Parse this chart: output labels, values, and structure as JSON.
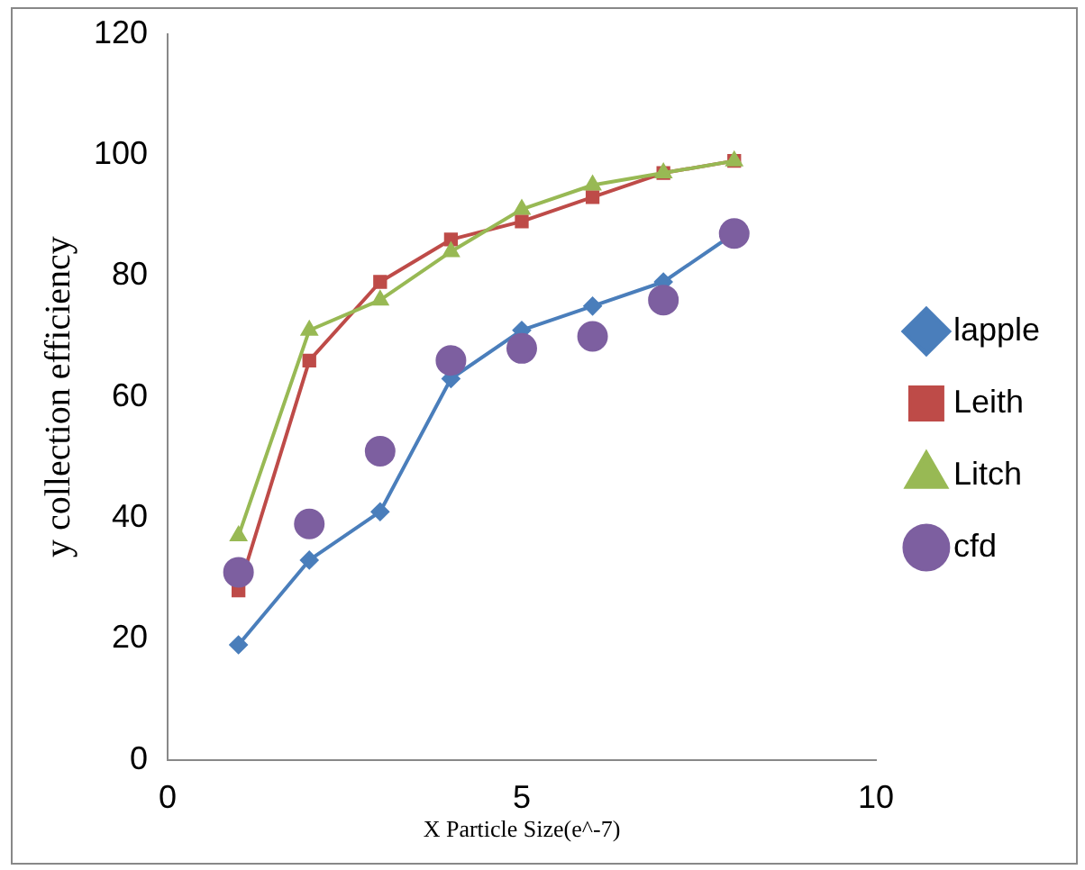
{
  "chart_data": {
    "type": "line",
    "xlabel": "X Particle Size(e^-7)",
    "ylabel": "y collection efficiency",
    "x": [
      1,
      2,
      3,
      4,
      5,
      6,
      7,
      8
    ],
    "series": [
      {
        "name": "lapple",
        "color": "#4a7ebb",
        "marker": "diamond",
        "values": [
          19,
          33,
          41,
          63,
          71,
          75,
          79,
          87
        ]
      },
      {
        "name": "Leith",
        "color": "#be4b48",
        "marker": "square",
        "values": [
          28,
          66,
          79,
          86,
          89,
          93,
          97,
          99
        ]
      },
      {
        "name": "Litch",
        "color": "#98b954",
        "marker": "triangle",
        "values": [
          37,
          71,
          76,
          84,
          91,
          95,
          97,
          99
        ]
      },
      {
        "name": "cfd",
        "type": "scatter",
        "color": "#7d5fa0",
        "marker": "circle",
        "values": [
          31,
          39,
          51,
          66,
          68,
          70,
          76,
          87
        ]
      }
    ],
    "xlim": [
      0,
      10
    ],
    "xticks": [
      0,
      5,
      10
    ],
    "ylim": [
      0,
      120
    ],
    "yticks": [
      0,
      20,
      40,
      60,
      80,
      100,
      120
    ],
    "grid": false,
    "legend": "right"
  }
}
